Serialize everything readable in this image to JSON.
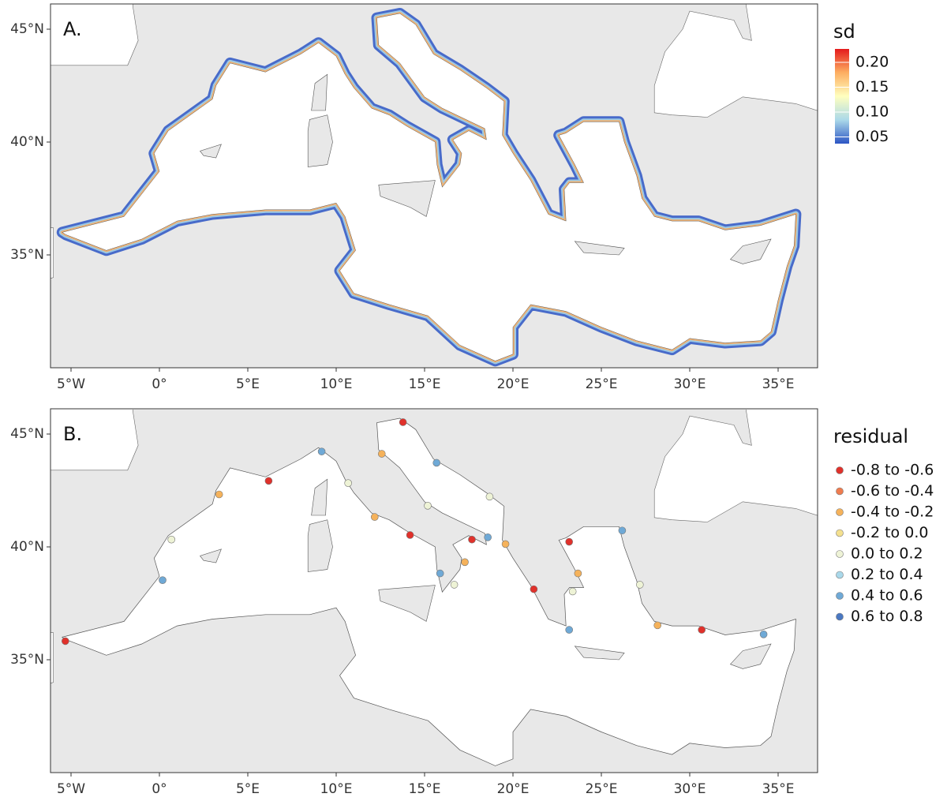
{
  "panels": [
    {
      "label": "A.",
      "xticks": [
        "5°W",
        "0°",
        "5°E",
        "10°E",
        "15°E",
        "20°E",
        "25°E",
        "30°E",
        "35°E"
      ],
      "yticks": [
        "45°N",
        "40°N",
        "35°N"
      ],
      "legend": {
        "title": "sd",
        "labels": [
          "0.20",
          "0.15",
          "0.10",
          "0.05"
        ],
        "colors": [
          "#e41a1c",
          "#fdae61",
          "#ffffbf",
          "#abd9e9",
          "#2c55c4"
        ]
      }
    },
    {
      "label": "B.",
      "xticks": [
        "5°W",
        "0°",
        "5°E",
        "10°E",
        "15°E",
        "20°E",
        "25°E",
        "30°E",
        "35°E"
      ],
      "yticks": [
        "45°N",
        "40°N",
        "35°N"
      ],
      "legend": {
        "title": "residual",
        "labels": [
          "-0.8 to -0.6",
          "-0.6 to -0.4",
          "-0.4 to -0.2",
          "-0.2 to 0.0",
          "0.0 to 0.2",
          "0.2 to 0.4",
          "0.4 to 0.6",
          "0.6 to 0.8"
        ],
        "colors": [
          "#e0312b",
          "#ef7c4f",
          "#f5b25b",
          "#f4e08f",
          "#eef3d6",
          "#a9d8ea",
          "#6fa9d6",
          "#4a78c2"
        ]
      }
    }
  ]
}
